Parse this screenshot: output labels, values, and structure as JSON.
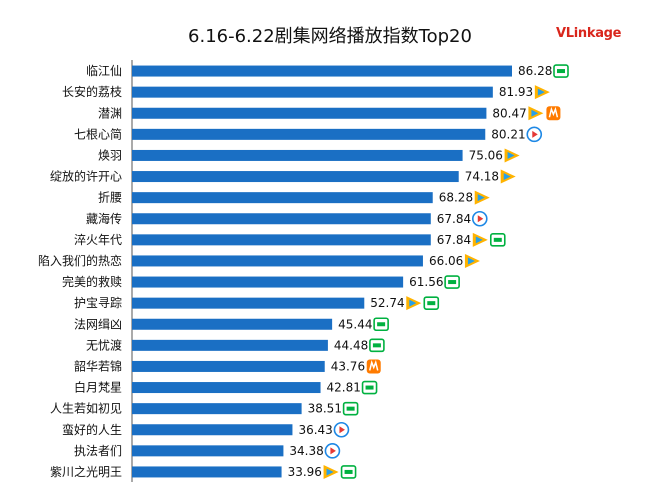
{
  "title": "6.16-6.22剧集网络播放指数Top20",
  "logo": {
    "text": "VLinkage"
  },
  "colors": {
    "bar": "#1a6fc4",
    "iqiyi": "#00b140",
    "tencent": "#ffb300",
    "youku": "#1e88e5",
    "mango": "#ff7b00"
  },
  "chart_data": {
    "type": "bar",
    "orientation": "horizontal",
    "title": "6.16-6.22剧集网络播放指数Top20",
    "categories": [
      "临江仙",
      "长安的荔枝",
      "潜渊",
      "七根心简",
      "焕羽",
      "绽放的许开心",
      "折腰",
      "藏海传",
      "淬火年代",
      "陷入我们的热恋",
      "完美的救赎",
      "护宝寻踪",
      "法网缉凶",
      "无忧渡",
      "韶华若锦",
      "白月梵星",
      "人生若如初见",
      "蛮好的人生",
      "执法者们",
      "紫川之光明王"
    ],
    "values": [
      86.28,
      81.93,
      80.47,
      80.21,
      75.06,
      74.18,
      68.28,
      67.84,
      67.84,
      66.06,
      61.56,
      52.74,
      45.44,
      44.48,
      43.76,
      42.81,
      38.51,
      36.43,
      34.38,
      33.96
    ],
    "platforms": [
      [
        "iqiyi"
      ],
      [
        "tencent"
      ],
      [
        "tencent",
        "mango"
      ],
      [
        "youku"
      ],
      [
        "tencent"
      ],
      [
        "tencent"
      ],
      [
        "tencent"
      ],
      [
        "youku"
      ],
      [
        "tencent",
        "iqiyi"
      ],
      [
        "tencent"
      ],
      [
        "iqiyi"
      ],
      [
        "tencent",
        "iqiyi"
      ],
      [
        "iqiyi"
      ],
      [
        "iqiyi"
      ],
      [
        "mango"
      ],
      [
        "iqiyi"
      ],
      [
        "iqiyi"
      ],
      [
        "youku"
      ],
      [
        "youku"
      ],
      [
        "tencent",
        "iqiyi"
      ]
    ],
    "xlim": [
      0,
      100
    ],
    "grid": false,
    "legend": "none"
  }
}
